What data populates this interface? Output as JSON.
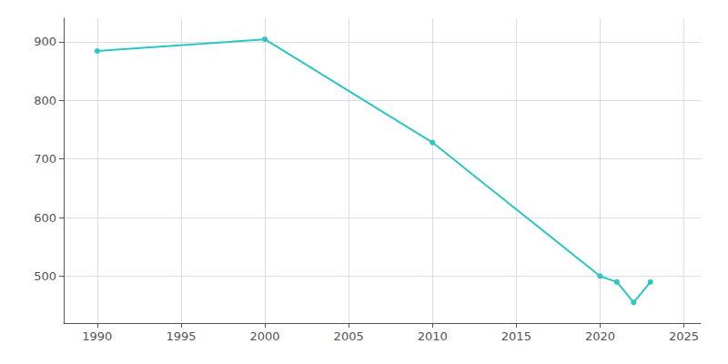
{
  "chart_data": {
    "type": "line",
    "x": [
      1990,
      2000,
      2010,
      2020,
      2021,
      2022,
      2023
    ],
    "values": [
      884,
      904,
      728,
      500,
      490,
      455,
      490
    ],
    "color": "#2EC4C4",
    "marker": "circle",
    "xlim": [
      1988,
      2026
    ],
    "ylim": [
      420,
      940
    ],
    "xticks": [
      1990,
      1995,
      2000,
      2005,
      2010,
      2015,
      2020,
      2025
    ],
    "yticks": [
      500,
      600,
      700,
      800,
      900
    ],
    "grid": true
  }
}
